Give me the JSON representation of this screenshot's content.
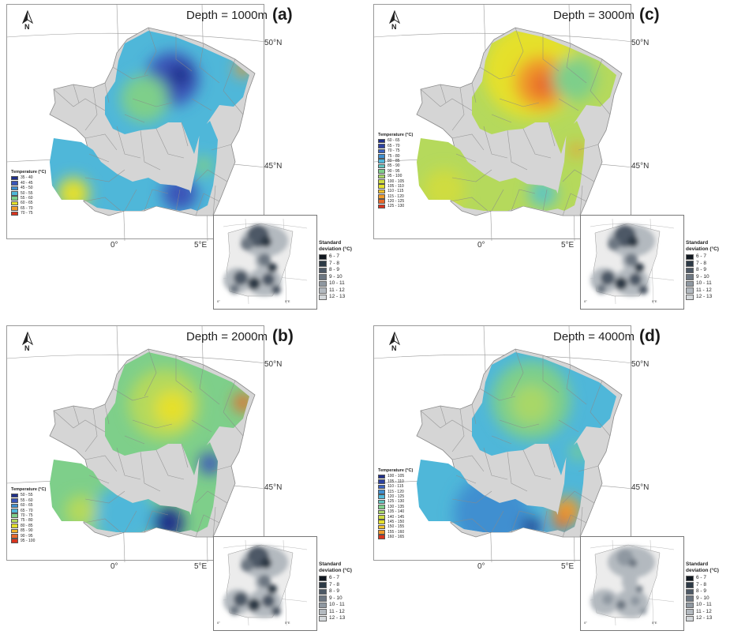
{
  "panels": [
    {
      "depth_label": "Depth = 1000m",
      "tag": "(a)",
      "lat_labels": [
        "50°N",
        "45°N"
      ],
      "lon_labels": [
        "0°",
        "5°E"
      ],
      "legend": {
        "title": "Temperature (°C)",
        "items": [
          {
            "label": "35 - 40",
            "color": "#1f2f8a"
          },
          {
            "label": "40 - 45",
            "color": "#3a55b8"
          },
          {
            "label": "45 - 50",
            "color": "#3f8fd0"
          },
          {
            "label": "50 - 55",
            "color": "#4fb7d9"
          },
          {
            "label": "55 - 60",
            "color": "#7ecf8a"
          },
          {
            "label": "60 - 65",
            "color": "#e5e02c"
          },
          {
            "label": "65 - 70",
            "color": "#ef9a2a"
          },
          {
            "label": "70 - 75",
            "color": "#d8341e"
          }
        ]
      },
      "sd_legend": {
        "title": "Standard\ndeviation (°C)",
        "items": [
          "6 - 7",
          "7 - 8",
          "8 - 9",
          "9 - 10",
          "10 - 11",
          "11 - 12",
          "12 - 13"
        ]
      }
    },
    {
      "depth_label": "Depth = 3000m",
      "tag": "(c)",
      "lat_labels": [
        "50°N",
        "45°N"
      ],
      "lon_labels": [
        "0°",
        "5°E"
      ],
      "legend": {
        "title": "Temperature (°C)",
        "items": [
          {
            "label": "60 - 65",
            "color": "#1f2f8a"
          },
          {
            "label": "65 - 70",
            "color": "#2c42a2"
          },
          {
            "label": "70 - 75",
            "color": "#3a62c0"
          },
          {
            "label": "75 - 80",
            "color": "#3f8fd0"
          },
          {
            "label": "80 - 85",
            "color": "#4fb7d9"
          },
          {
            "label": "85 - 90",
            "color": "#61c6bf"
          },
          {
            "label": "90 - 95",
            "color": "#7ecf8a"
          },
          {
            "label": "95 - 100",
            "color": "#a8d767"
          },
          {
            "label": "100 - 105",
            "color": "#cfdc3f"
          },
          {
            "label": "105 - 110",
            "color": "#e5e02c"
          },
          {
            "label": "110 - 115",
            "color": "#efc02b"
          },
          {
            "label": "115 - 120",
            "color": "#ef9a2a"
          },
          {
            "label": "120 - 125",
            "color": "#e8692a"
          },
          {
            "label": "125 - 130",
            "color": "#d8341e"
          }
        ]
      },
      "sd_legend": {
        "title": "Standard\ndeviation (°C)",
        "items": [
          "6 - 7",
          "7 - 8",
          "8 - 9",
          "9 - 10",
          "10 - 11",
          "11 - 12",
          "12 - 13"
        ]
      }
    },
    {
      "depth_label": "Depth = 2000m",
      "tag": "(b)",
      "lat_labels": [
        "50°N",
        "45°N"
      ],
      "lon_labels": [
        "0°",
        "5°E"
      ],
      "legend": {
        "title": "Temperature (°C)",
        "items": [
          {
            "label": "50 - 55",
            "color": "#1f2f8a"
          },
          {
            "label": "55 - 60",
            "color": "#3a55b8"
          },
          {
            "label": "60 - 65",
            "color": "#3f8fd0"
          },
          {
            "label": "65 - 70",
            "color": "#4fb7d9"
          },
          {
            "label": "70 - 75",
            "color": "#7ecf8a"
          },
          {
            "label": "75 - 80",
            "color": "#b5d95c"
          },
          {
            "label": "80 - 85",
            "color": "#e5e02c"
          },
          {
            "label": "85 - 90",
            "color": "#efb42b"
          },
          {
            "label": "90 - 95",
            "color": "#e8692a"
          },
          {
            "label": "95 - 100",
            "color": "#d8341e"
          }
        ]
      },
      "sd_legend": {
        "title": "Standard\ndeviation (°C)",
        "items": [
          "6 - 7",
          "7 - 8",
          "8 - 9",
          "9 - 10",
          "10 - 11",
          "11 - 12",
          "12 - 13"
        ]
      }
    },
    {
      "depth_label": "Depth = 4000m",
      "tag": "(d)",
      "lat_labels": [
        "50°N",
        "45°N"
      ],
      "lon_labels": [
        "0°",
        "5°E"
      ],
      "legend": {
        "title": "Temperature (°C)",
        "items": [
          {
            "label": "100 - 105",
            "color": "#1f2f8a"
          },
          {
            "label": "105 - 110",
            "color": "#2c42a2"
          },
          {
            "label": "110 - 115",
            "color": "#3a62c0"
          },
          {
            "label": "115 - 120",
            "color": "#3f8fd0"
          },
          {
            "label": "120 - 125",
            "color": "#4fb7d9"
          },
          {
            "label": "125 - 130",
            "color": "#61c6bf"
          },
          {
            "label": "130 - 135",
            "color": "#7ecf8a"
          },
          {
            "label": "135 - 140",
            "color": "#a8d767"
          },
          {
            "label": "140 - 145",
            "color": "#cfdc3f"
          },
          {
            "label": "145 - 150",
            "color": "#e5e02c"
          },
          {
            "label": "150 - 155",
            "color": "#efc02b"
          },
          {
            "label": "155 - 160",
            "color": "#ef9a2a"
          },
          {
            "label": "160 - 165",
            "color": "#d8341e"
          }
        ]
      },
      "sd_legend": {
        "title": "Standard\ndeviation (°C)",
        "items": [
          "6 - 7",
          "7 - 8",
          "8 - 9",
          "9 - 10",
          "10 - 11",
          "11 - 12",
          "12 - 13"
        ]
      }
    }
  ],
  "sd_colors": [
    "#111820",
    "#2d3a46",
    "#4d5966",
    "#6d7782",
    "#8f98a1",
    "#b3b9bf",
    "#d3d7da"
  ],
  "basemap_colors": {
    "department_fill": "#d5d5d5",
    "department_border": "#8a8a8a",
    "graticule": "#9a9a9a"
  },
  "north_label": "N"
}
